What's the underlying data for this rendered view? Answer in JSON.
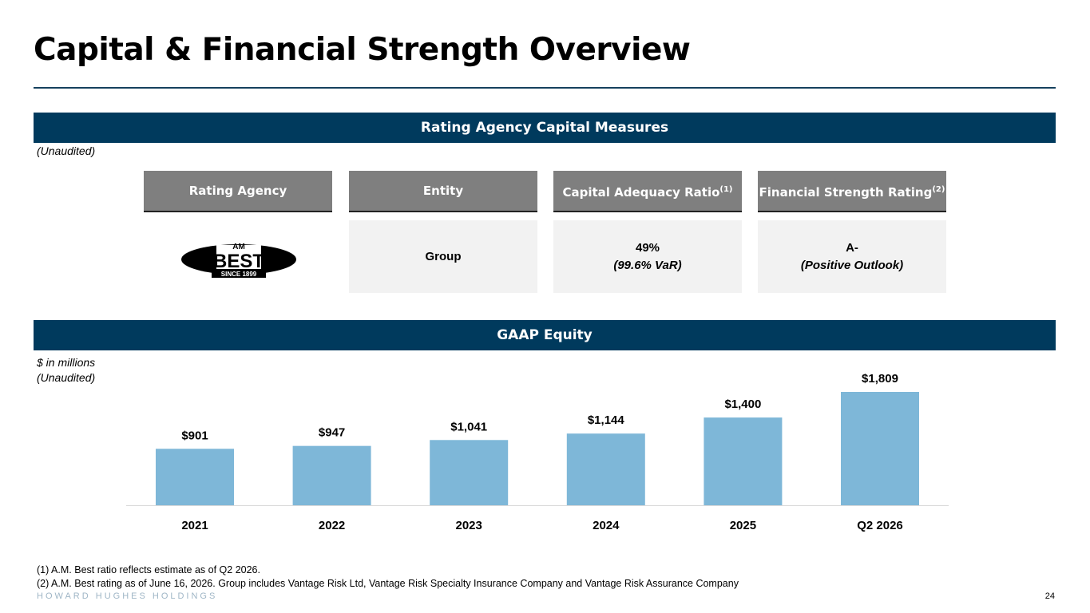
{
  "header": {
    "title": "Capital & Financial Strength Overview"
  },
  "rating_section": {
    "title": "Rating Agency Capital Measures",
    "note": "(Unaudited)",
    "columns": {
      "agency": "Rating Agency",
      "entity": "Entity",
      "car": "Capital Adequacy Ratio",
      "car_sup": "(1)",
      "fsr": "Financial Strength Rating",
      "fsr_sup": "(2)"
    },
    "row": {
      "agency_logo": {
        "top": "AM",
        "main": "BEST",
        "bottom": "SINCE 1899"
      },
      "entity": "Group",
      "car_value": "49%",
      "car_detail": "(99.6% VaR)",
      "fsr_value": "A-",
      "fsr_detail": "(Positive Outlook)"
    }
  },
  "equity_section": {
    "title": "GAAP Equity",
    "note_line1": "$ in millions",
    "note_line2": "(Unaudited)"
  },
  "chart_data": {
    "type": "bar",
    "categories": [
      "2021",
      "2022",
      "2023",
      "2024",
      "2025",
      "Q2 2026"
    ],
    "values": [
      901,
      947,
      1041,
      1144,
      1400,
      1809
    ],
    "labels": [
      "$901",
      "$947",
      "$1,041",
      "$1,144",
      "$1,400",
      "$1,809"
    ],
    "ylim": [
      0,
      1809
    ],
    "color": "#7eb7d8",
    "grid": false
  },
  "footnotes": [
    "(1)   A.M. Best ratio reflects estimate as of Q2 2026.",
    "(2)   A.M. Best rating as of June 16, 2026. Group includes Vantage Risk Ltd, Vantage Risk Specialty Insurance Company and Vantage Risk Assurance Company"
  ],
  "footer": {
    "brand": "HOWARD HUGHES HOLDINGS",
    "page_number": "24"
  }
}
